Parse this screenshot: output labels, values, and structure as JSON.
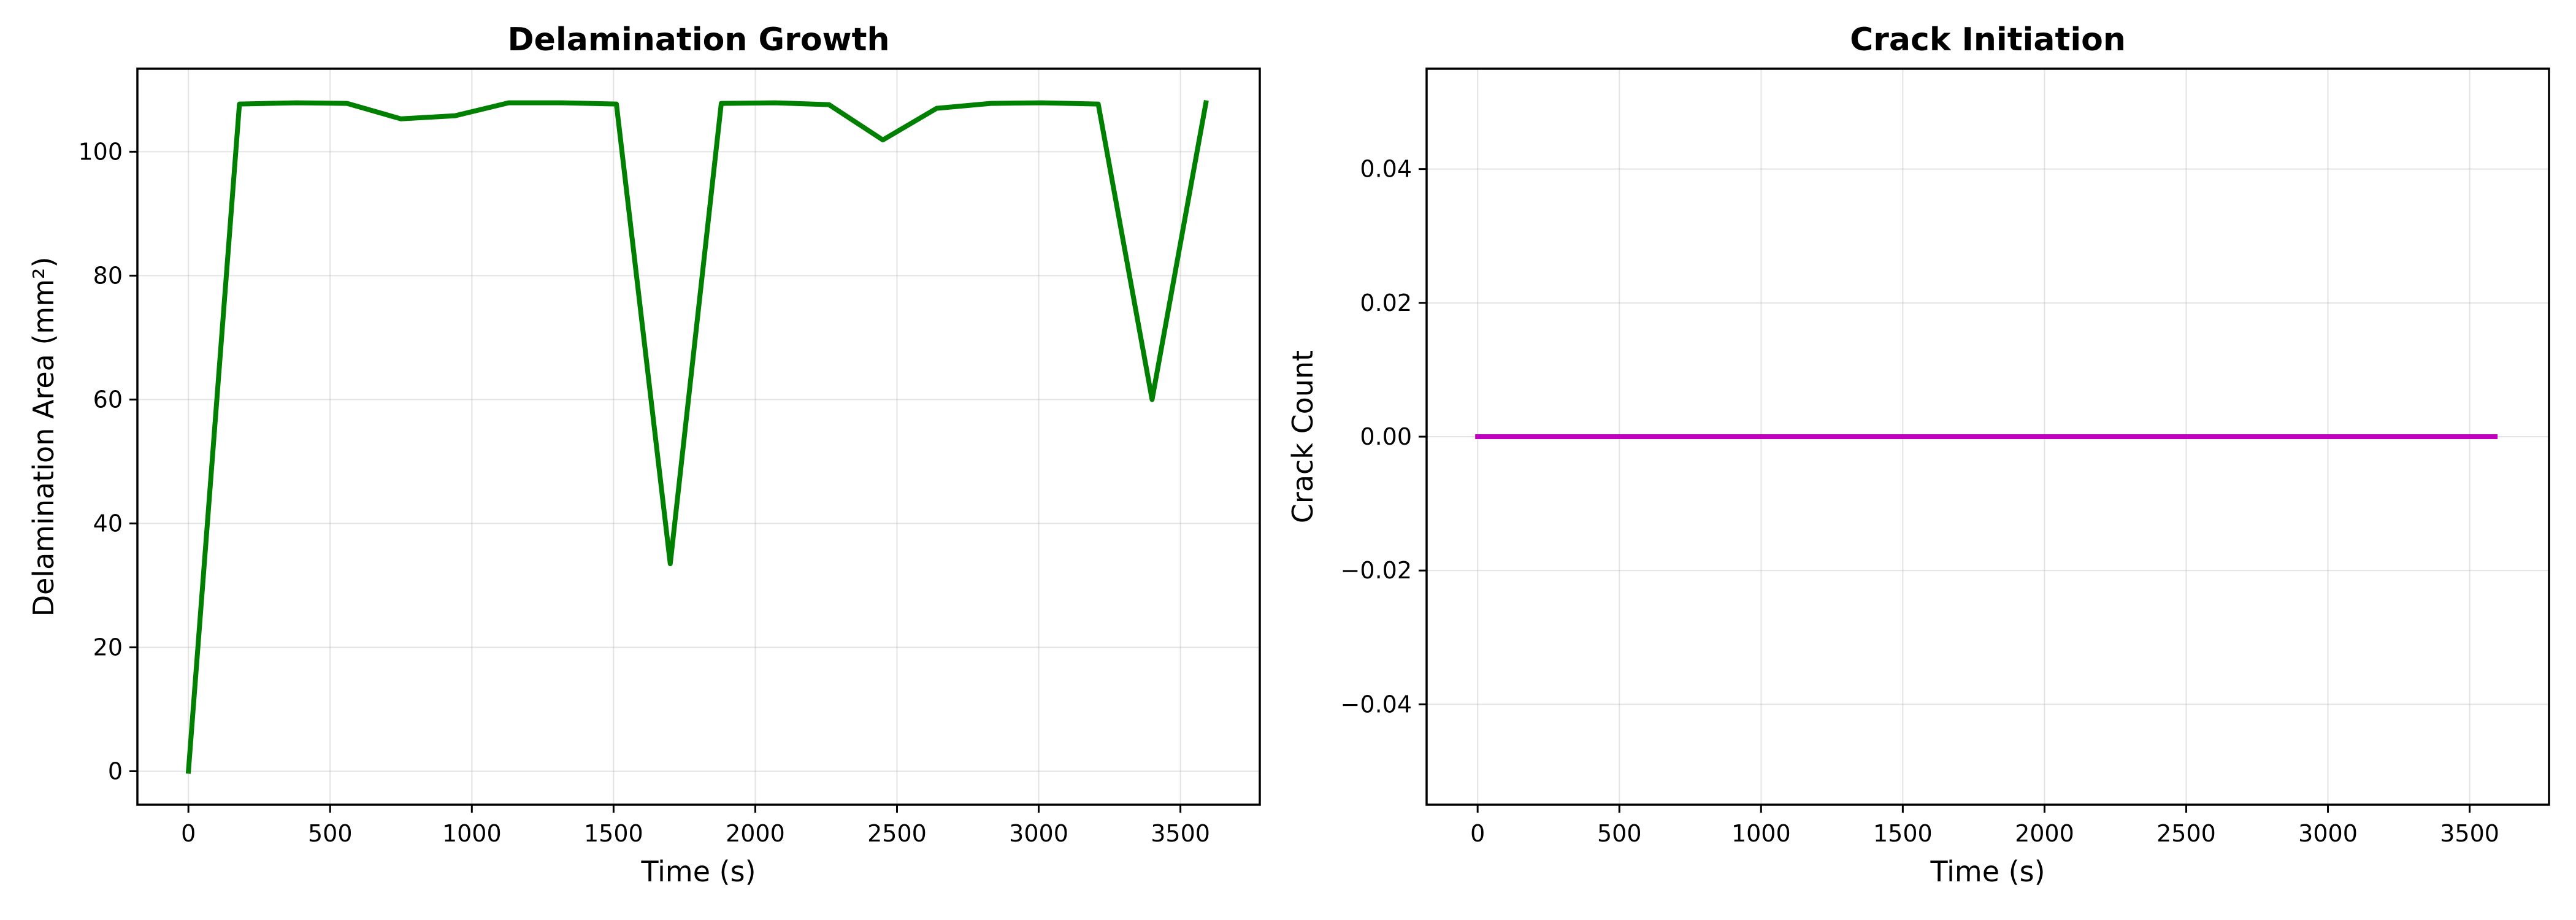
{
  "chart_data": [
    {
      "type": "line",
      "title": "Delamination Growth",
      "xlabel": "Time (s)",
      "ylabel": "Delamination Area (mm²)",
      "xlim": [
        -180,
        3780
      ],
      "ylim": [
        -5.4,
        113.4
      ],
      "xticks": [
        0,
        500,
        1000,
        1500,
        2000,
        2500,
        3000,
        3500
      ],
      "xtick_labels": [
        "0",
        "500",
        "1000",
        "1500",
        "2000",
        "2500",
        "3000",
        "3500"
      ],
      "yticks": [
        0,
        20,
        40,
        60,
        80,
        100
      ],
      "ytick_labels": [
        "0",
        "20",
        "40",
        "60",
        "80",
        "100"
      ],
      "grid": true,
      "series": [
        {
          "color": "#008000",
          "x": [
            0,
            180,
            380,
            560,
            750,
            940,
            1130,
            1320,
            1510,
            1700,
            1880,
            2070,
            2260,
            2450,
            2640,
            2830,
            3010,
            3210,
            3400,
            3590
          ],
          "y": [
            0,
            107.7,
            107.9,
            107.8,
            105.3,
            105.8,
            107.9,
            107.9,
            107.7,
            33.5,
            107.8,
            107.9,
            107.6,
            101.9,
            107.0,
            107.8,
            107.9,
            107.7,
            60.0,
            107.9
          ]
        }
      ]
    },
    {
      "type": "line",
      "title": "Crack Initiation",
      "xlabel": "Time (s)",
      "ylabel": "Crack Count",
      "xlim": [
        -180,
        3780
      ],
      "ylim": [
        -0.055,
        0.055
      ],
      "xticks": [
        0,
        500,
        1000,
        1500,
        2000,
        2500,
        3000,
        3500
      ],
      "xtick_labels": [
        "0",
        "500",
        "1000",
        "1500",
        "2000",
        "2500",
        "3000",
        "3500"
      ],
      "yticks": [
        -0.04,
        -0.02,
        0.0,
        0.02,
        0.04
      ],
      "ytick_labels": [
        "−0.04",
        "−0.02",
        "0.00",
        "0.02",
        "0.04"
      ],
      "grid": true,
      "series": [
        {
          "color": "#bf00bf",
          "x": [
            0,
            180,
            380,
            560,
            750,
            940,
            1130,
            1320,
            1510,
            1700,
            1880,
            2070,
            2260,
            2450,
            2640,
            2830,
            3010,
            3210,
            3400,
            3590
          ],
          "y": [
            0,
            0,
            0,
            0,
            0,
            0,
            0,
            0,
            0,
            0,
            0,
            0,
            0,
            0,
            0,
            0,
            0,
            0,
            0,
            0
          ]
        }
      ]
    }
  ]
}
